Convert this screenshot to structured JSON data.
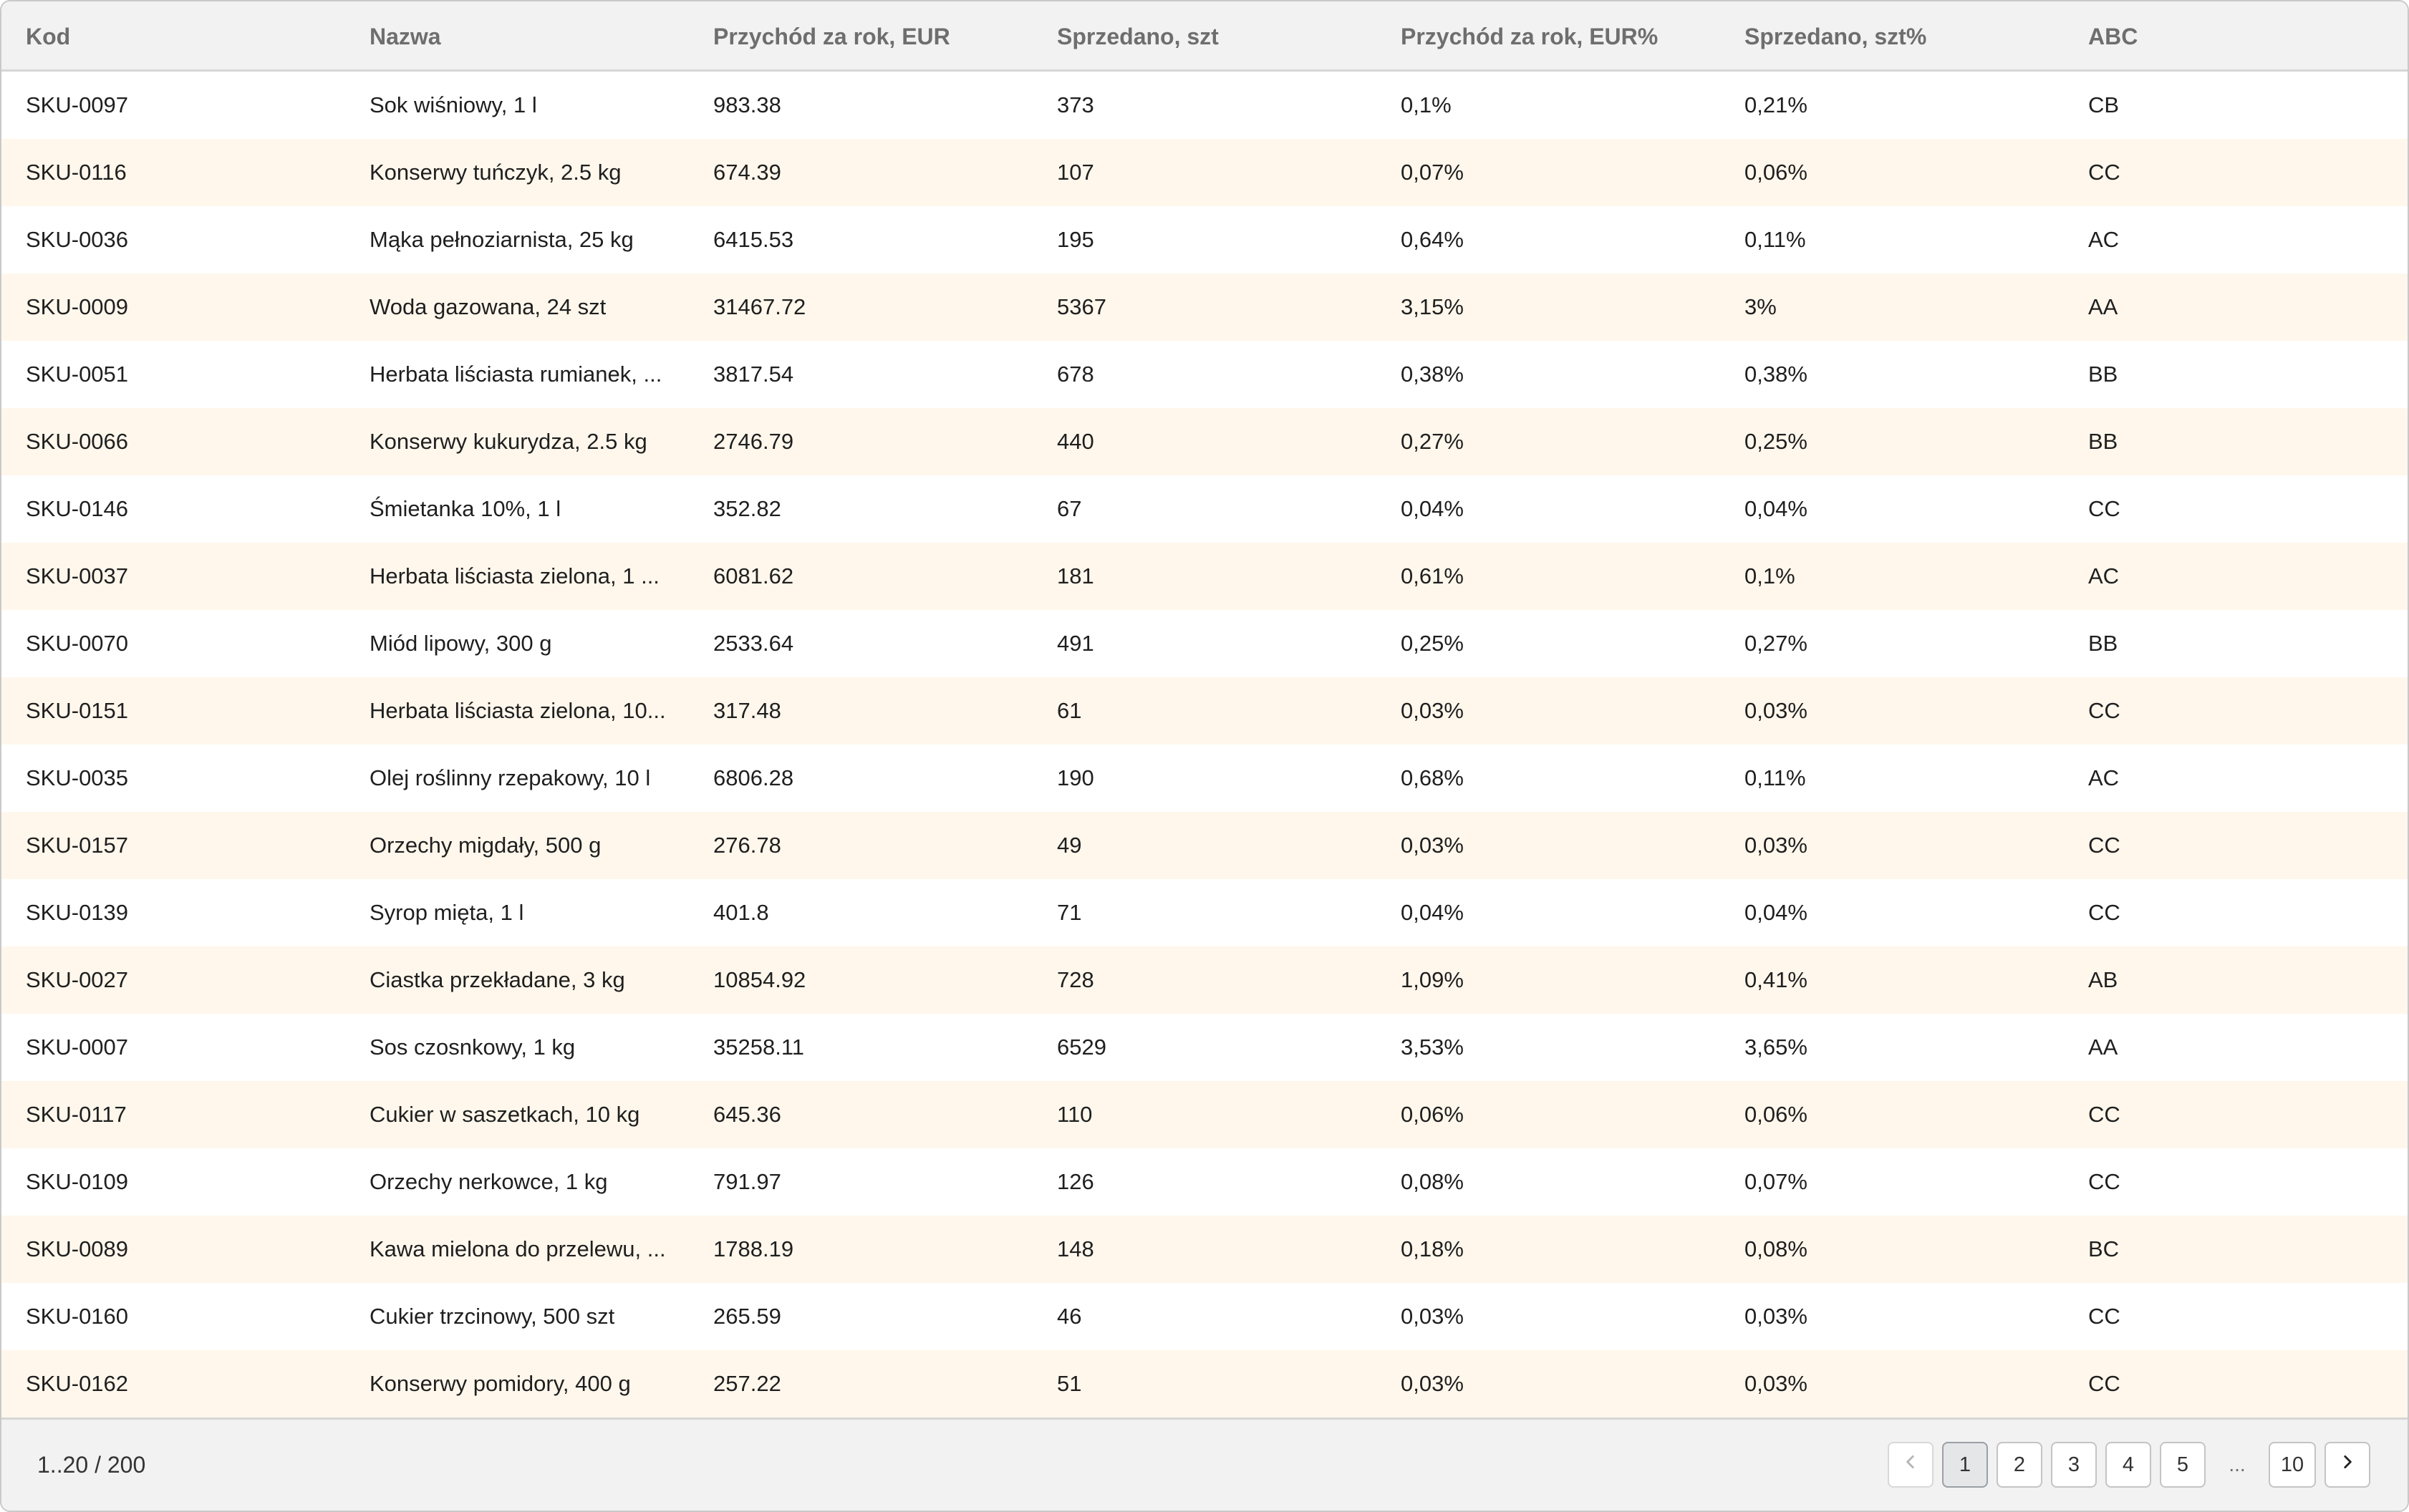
{
  "table": {
    "columns": [
      "Kod",
      "Nazwa",
      "Przychód za rok, EUR",
      "Sprzedano, szt",
      "Przychód za rok, EUR%",
      "Sprzedano, szt%",
      "ABC"
    ],
    "rows": [
      [
        "SKU-0097",
        "Sok wiśniowy, 1 l",
        "983.38",
        "373",
        "0,1%",
        "0,21%",
        "CB"
      ],
      [
        "SKU-0116",
        "Konserwy tuńczyk, 2.5 kg",
        "674.39",
        "107",
        "0,07%",
        "0,06%",
        "CC"
      ],
      [
        "SKU-0036",
        "Mąka pełnoziarnista, 25 kg",
        "6415.53",
        "195",
        "0,64%",
        "0,11%",
        "AC"
      ],
      [
        "SKU-0009",
        "Woda gazowana, 24 szt",
        "31467.72",
        "5367",
        "3,15%",
        "3%",
        "AA"
      ],
      [
        "SKU-0051",
        "Herbata liściasta rumianek, ...",
        "3817.54",
        "678",
        "0,38%",
        "0,38%",
        "BB"
      ],
      [
        "SKU-0066",
        "Konserwy kukurydza, 2.5 kg",
        "2746.79",
        "440",
        "0,27%",
        "0,25%",
        "BB"
      ],
      [
        "SKU-0146",
        "Śmietanka 10%, 1 l",
        "352.82",
        "67",
        "0,04%",
        "0,04%",
        "CC"
      ],
      [
        "SKU-0037",
        "Herbata liściasta zielona, 1 ...",
        "6081.62",
        "181",
        "0,61%",
        "0,1%",
        "AC"
      ],
      [
        "SKU-0070",
        "Miód lipowy, 300 g",
        "2533.64",
        "491",
        "0,25%",
        "0,27%",
        "BB"
      ],
      [
        "SKU-0151",
        "Herbata liściasta zielona, 10...",
        "317.48",
        "61",
        "0,03%",
        "0,03%",
        "CC"
      ],
      [
        "SKU-0035",
        "Olej roślinny rzepakowy, 10 l",
        "6806.28",
        "190",
        "0,68%",
        "0,11%",
        "AC"
      ],
      [
        "SKU-0157",
        "Orzechy migdały, 500 g",
        "276.78",
        "49",
        "0,03%",
        "0,03%",
        "CC"
      ],
      [
        "SKU-0139",
        "Syrop mięta, 1 l",
        "401.8",
        "71",
        "0,04%",
        "0,04%",
        "CC"
      ],
      [
        "SKU-0027",
        "Ciastka przekładane, 3 kg",
        "10854.92",
        "728",
        "1,09%",
        "0,41%",
        "AB"
      ],
      [
        "SKU-0007",
        "Sos czosnkowy, 1 kg",
        "35258.11",
        "6529",
        "3,53%",
        "3,65%",
        "AA"
      ],
      [
        "SKU-0117",
        "Cukier w saszetkach, 10 kg",
        "645.36",
        "110",
        "0,06%",
        "0,06%",
        "CC"
      ],
      [
        "SKU-0109",
        "Orzechy nerkowce, 1 kg",
        "791.97",
        "126",
        "0,08%",
        "0,07%",
        "CC"
      ],
      [
        "SKU-0089",
        "Kawa mielona do przelewu, ...",
        "1788.19",
        "148",
        "0,18%",
        "0,08%",
        "BC"
      ],
      [
        "SKU-0160",
        "Cukier trzcinowy, 500 szt",
        "265.59",
        "46",
        "0,03%",
        "0,03%",
        "CC"
      ],
      [
        "SKU-0162",
        "Konserwy pomidory, 400 g",
        "257.22",
        "51",
        "0,03%",
        "0,03%",
        "CC"
      ]
    ]
  },
  "footer": {
    "range": "1..20 / 200",
    "pages": [
      "1",
      "2",
      "3",
      "4",
      "5"
    ],
    "ellipsis": "...",
    "last_page": "10",
    "current_page": "1",
    "prev_icon": "chevron-left-icon",
    "next_icon": "chevron-right-icon"
  },
  "colors": {
    "header_bg": "#f2f2f2",
    "alt_row_bg": "#fff7ec",
    "border": "#d6d6d6"
  }
}
